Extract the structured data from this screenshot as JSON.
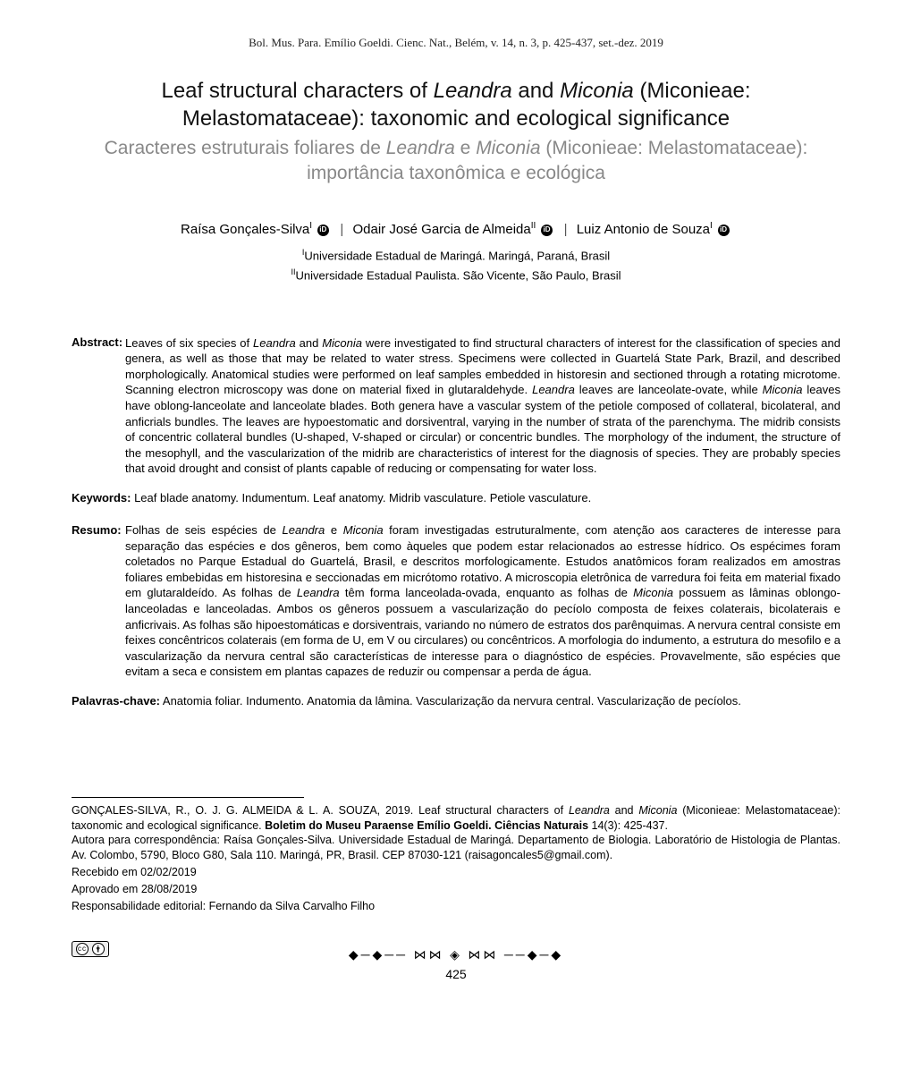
{
  "journal_header": "Bol. Mus. Para. Emílio Goeldi. Cienc. Nat., Belém, v. 14, n. 3, p. 425-437, set.-dez. 2019",
  "title_en_part1": "Leaf structural characters of ",
  "title_en_ital1": "Leandra",
  "title_en_part2": " and ",
  "title_en_ital2": "Miconia",
  "title_en_part3": " (Miconieae: Melastomataceae): taxonomic and ecological significance",
  "title_pt_part1": "Caracteres estruturais foliares de ",
  "title_pt_ital1": "Leandra",
  "title_pt_part2": " e ",
  "title_pt_ital2": "Miconia",
  "title_pt_part3": " (Miconieae: Melastomataceae): importância taxonômica e ecológica",
  "authors": {
    "a1_name": "Raísa Gonçales-Silva",
    "a1_sup": "I",
    "a2_name": "Odair José Garcia de Almeida",
    "a2_sup": "II",
    "a3_name": "Luiz Antonio de Souza",
    "a3_sup": "I"
  },
  "affiliations": {
    "aff1_sup": "I",
    "aff1_text": "Universidade Estadual de Maringá. Maringá, Paraná, Brasil",
    "aff2_sup": "II",
    "aff2_text": "Universidade Estadual Paulista. São Vicente, São Paulo, Brasil"
  },
  "abstract_label": "Abstract:",
  "abstract_pre": "Leaves of six species of ",
  "abstract_i1": "Leandra",
  "abstract_mid1": " and ",
  "abstract_i2": "Miconia",
  "abstract_body": " were investigated to find structural characters of interest for the classification of species and genera, as well as those that may be related to water stress. Specimens were collected in Guartelá State Park, Brazil, and described morphologically. Anatomical studies were performed on leaf samples embedded in historesin and sectioned through a rotating microtome. Scanning electron microscopy was done on material fixed in glutaraldehyde. ",
  "abstract_i3": "Leandra",
  "abstract_mid2": " leaves are lanceolate-ovate, while ",
  "abstract_i4": "Miconia",
  "abstract_tail": " leaves have oblong-lanceolate and lanceolate blades. Both genera have a vascular system of the petiole composed of collateral, bicolateral, and anficrials bundles. The leaves are hypoestomatic and dorsiventral, varying in the number of strata of the parenchyma. The midrib consists of concentric collateral bundles (U-shaped, V-shaped or circular) or concentric bundles. The morphology of the indument, the structure of the mesophyll, and the vascularization of the midrib are characteristics of interest for the diagnosis of species. They are probably species that avoid drought and consist of plants capable of reducing or compensating for water loss.",
  "keywords_label": "Keywords:",
  "keywords_text": " Leaf blade anatomy. Indumentum. Leaf anatomy. Midrib vasculature. Petiole vasculature.",
  "resumo_label": "Resumo:",
  "resumo_pre": "Folhas de seis espécies de ",
  "resumo_i1": "Leandra",
  "resumo_mid1": " e ",
  "resumo_i2": "Miconia",
  "resumo_body1": " foram investigadas estruturalmente, com atenção aos caracteres de interesse para separação das espécies e dos gêneros, bem como àqueles que podem estar relacionados ao estresse hídrico. Os espécimes foram coletados no Parque Estadual do Guartelá, Brasil, e descritos morfologicamente. Estudos anatômicos foram realizados em amostras foliares embebidas em historesina e seccionadas em micrótomo rotativo. A microscopia eletrônica de varredura foi feita em material fixado em glutaraldeído. As folhas de ",
  "resumo_i3": "Leandra",
  "resumo_mid2": " têm forma lanceolada-ovada, enquanto as folhas de ",
  "resumo_i4": "Miconia",
  "resumo_body2": " possuem as lâminas oblongo-lanceoladas e lanceoladas. Ambos os gêneros possuem a vascularização do pecíolo composta de feixes colaterais, bicolaterais e anficrivais. As folhas são hipoestomáticas e dorsiventrais, variando no número de estratos dos parênquimas. A nervura central consiste em feixes concêntricos colaterais (em forma de U, em V ou circulares) ou concêntricos. A morfologia do indumento, a estrutura do mesofilo e a vascularização da nervura central são características de interesse para o diagnóstico de espécies. Provavelmente, são espécies que evitam a seca e consistem em plantas capazes de reduzir ou compensar a perda de água.",
  "palavras_label": "Palavras-chave:",
  "palavras_text": " Anatomia foliar. Indumento. Anatomia da lâmina. Vascularização da nervura central. Vascularização de pecíolos.",
  "citation_authors": "GONÇALES-SILVA, R., O. J. G. ALMEIDA & L. A. SOUZA, 2019. Leaf structural characters of ",
  "citation_i1": "Leandra",
  "citation_mid1": " and ",
  "citation_i2": "Miconia",
  "citation_mid2": " (Miconieae: Melastomataceae): taxonomic and ecological significance. ",
  "citation_bold": "Boletim do Museu Paraense Emílio Goeldi. Ciências Naturais",
  "citation_tail": " 14(3): 425-437.",
  "corr_author": "Autora para correspondência: Raísa Gonçales-Silva. Universidade Estadual de Maringá. Departamento de Biologia. Laboratório de Histologia de Plantas. Av. Colombo, 5790, Bloco G80, Sala 110. Maringá, PR, Brasil. CEP 87030-121 (raisagoncales5@gmail.com).",
  "received": "Recebido em 02/02/2019",
  "approved": "Aprovado em 28/08/2019",
  "editorial": "Responsabilidade editorial: Fernando da Silva Carvalho Filho",
  "cc_label": "cc",
  "page_number": "425",
  "ornament": "◆─◆── ⋈⋈ ◈ ⋈⋈ ──◆─◆"
}
